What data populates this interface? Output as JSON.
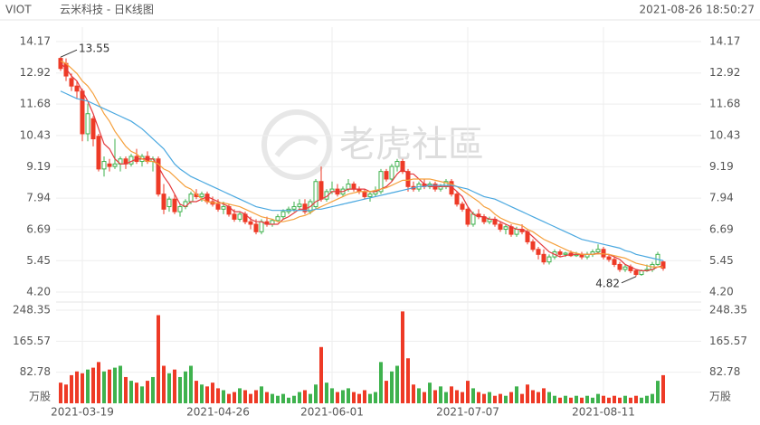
{
  "chart_data": {
    "type": "candlestick",
    "symbol": "VIOT",
    "title": "云米科技 - 日K线图",
    "timestamp": "2021-08-26 18:50:27",
    "watermark": "老虎社區",
    "up_color": "#3fb24e",
    "down_color": "#ee3a26",
    "categories": [
      null,
      null,
      null,
      null,
      "2021-03-19",
      null,
      null,
      null,
      null,
      null,
      null,
      null,
      null,
      null,
      null,
      null,
      null,
      null,
      null,
      null,
      null,
      null,
      null,
      null,
      null,
      null,
      null,
      null,
      null,
      "2021-04-26",
      null,
      null,
      null,
      null,
      null,
      null,
      null,
      null,
      null,
      null,
      null,
      null,
      null,
      null,
      null,
      null,
      null,
      null,
      null,
      null,
      "2021-06-01",
      null,
      null,
      null,
      null,
      null,
      null,
      null,
      null,
      null,
      null,
      null,
      null,
      null,
      null,
      null,
      null,
      null,
      null,
      null,
      null,
      null,
      null,
      null,
      null,
      "2021-07-07",
      null,
      null,
      null,
      null,
      null,
      null,
      null,
      null,
      null,
      null,
      null,
      null,
      null,
      null,
      null,
      null,
      null,
      null,
      null,
      null,
      null,
      null,
      null,
      null,
      "2021-08-11",
      null,
      null,
      null,
      null,
      null,
      null,
      null,
      null,
      null,
      null,
      null
    ],
    "open": [
      13.5,
      13.3,
      12.7,
      12.4,
      12.2,
      10.5,
      11.1,
      10.4,
      9.1,
      9.3,
      9.2,
      9.3,
      9.5,
      9.3,
      9.6,
      9.4,
      9.6,
      9.4,
      9.5,
      8.1,
      7.6,
      7.9,
      7.4,
      7.6,
      7.8,
      8.1,
      8.0,
      8.1,
      7.8,
      7.7,
      7.5,
      7.6,
      7.3,
      7.1,
      7.3,
      7.0,
      6.9,
      6.6,
      7.0,
      6.9,
      7.05,
      7.2,
      7.4,
      7.5,
      7.6,
      7.7,
      7.4,
      7.6,
      8.6,
      7.9,
      8.2,
      8.3,
      8.1,
      8.3,
      8.5,
      8.3,
      8.2,
      8.0,
      8.1,
      8.2,
      9.0,
      8.7,
      9.2,
      9.4,
      9.0,
      8.4,
      8.3,
      8.5,
      8.4,
      8.5,
      8.3,
      8.4,
      8.6,
      8.1,
      7.7,
      7.5,
      6.9,
      7.3,
      7.2,
      7.0,
      7.1,
      6.9,
      6.7,
      6.8,
      6.5,
      6.7,
      6.6,
      6.2,
      5.9,
      5.7,
      5.4,
      5.6,
      5.8,
      5.7,
      5.75,
      5.65,
      5.7,
      5.6,
      5.7,
      5.8,
      5.9,
      5.6,
      5.5,
      5.3,
      5.1,
      5.2,
      5.05,
      4.9,
      5.05,
      5.1,
      5.3,
      5.4
    ],
    "high": [
      13.55,
      13.5,
      12.9,
      12.6,
      12.3,
      11.7,
      11.2,
      10.5,
      9.6,
      9.5,
      10.3,
      9.6,
      9.6,
      9.7,
      9.9,
      9.7,
      9.8,
      9.6,
      9.6,
      8.5,
      8.0,
      8.1,
      7.7,
      7.9,
      8.2,
      8.3,
      8.2,
      8.2,
      8.0,
      7.9,
      7.8,
      7.7,
      7.5,
      7.4,
      7.4,
      7.2,
      7.1,
      7.1,
      7.2,
      7.1,
      7.3,
      7.5,
      7.6,
      7.8,
      7.9,
      7.9,
      7.9,
      8.7,
      9.2,
      8.3,
      8.6,
      8.5,
      8.4,
      8.7,
      8.6,
      8.4,
      8.3,
      8.2,
      8.4,
      9.1,
      9.1,
      9.3,
      9.5,
      9.5,
      9.1,
      8.6,
      8.6,
      8.7,
      8.6,
      8.6,
      8.5,
      8.7,
      8.7,
      8.2,
      7.8,
      7.6,
      7.4,
      7.5,
      7.3,
      7.2,
      7.2,
      7.0,
      6.9,
      6.9,
      6.8,
      6.9,
      6.7,
      6.3,
      6.0,
      5.9,
      5.7,
      5.9,
      5.9,
      5.8,
      5.85,
      5.8,
      5.8,
      5.8,
      5.9,
      6.1,
      6.0,
      5.7,
      5.6,
      5.4,
      5.3,
      5.3,
      5.1,
      5.1,
      5.3,
      5.4,
      5.8,
      5.45
    ],
    "low": [
      13.0,
      12.6,
      12.2,
      11.9,
      10.2,
      10.2,
      10.0,
      9.0,
      8.8,
      9.0,
      9.1,
      9.0,
      9.1,
      9.2,
      9.3,
      9.2,
      9.3,
      9.0,
      8.0,
      7.3,
      7.4,
      7.3,
      7.2,
      7.5,
      7.7,
      7.9,
      7.8,
      7.7,
      7.6,
      7.4,
      7.3,
      7.2,
      7.0,
      7.0,
      6.9,
      6.7,
      6.5,
      6.5,
      6.8,
      6.8,
      7.0,
      7.1,
      7.3,
      7.4,
      7.5,
      7.3,
      7.3,
      7.5,
      7.8,
      7.8,
      8.1,
      8.0,
      8.0,
      8.2,
      8.2,
      8.1,
      7.9,
      7.8,
      8.0,
      8.1,
      8.6,
      8.6,
      9.0,
      8.9,
      8.2,
      8.2,
      8.2,
      8.3,
      8.3,
      8.2,
      8.2,
      8.3,
      8.0,
      7.6,
      7.4,
      6.8,
      6.8,
      7.1,
      6.9,
      6.9,
      6.8,
      6.6,
      6.5,
      6.4,
      6.4,
      6.5,
      6.1,
      5.8,
      5.5,
      5.3,
      5.3,
      5.5,
      5.6,
      5.6,
      5.6,
      5.6,
      5.5,
      5.5,
      5.6,
      5.7,
      5.5,
      5.4,
      5.2,
      5.0,
      5.0,
      4.95,
      4.82,
      4.85,
      5.0,
      5.0,
      5.25,
      5.05
    ],
    "close": [
      13.1,
      12.8,
      12.4,
      12.2,
      10.5,
      11.3,
      10.3,
      9.1,
      9.4,
      9.2,
      9.3,
      9.5,
      9.3,
      9.6,
      9.4,
      9.6,
      9.4,
      9.5,
      8.1,
      7.5,
      7.9,
      7.4,
      7.6,
      7.8,
      8.1,
      8.0,
      8.1,
      7.8,
      7.7,
      7.5,
      7.6,
      7.3,
      7.1,
      7.3,
      7.0,
      6.9,
      6.6,
      7.0,
      6.9,
      7.05,
      7.2,
      7.4,
      7.5,
      7.6,
      7.7,
      7.4,
      7.8,
      8.6,
      7.9,
      8.2,
      8.3,
      8.1,
      8.3,
      8.5,
      8.3,
      8.2,
      8.0,
      8.1,
      8.2,
      9.0,
      8.7,
      9.2,
      9.4,
      9.0,
      8.4,
      8.3,
      8.5,
      8.4,
      8.5,
      8.3,
      8.4,
      8.6,
      8.1,
      7.7,
      7.5,
      6.9,
      7.3,
      7.2,
      7.0,
      7.1,
      6.9,
      6.7,
      6.8,
      6.5,
      6.7,
      6.6,
      6.2,
      5.9,
      5.7,
      5.4,
      5.6,
      5.8,
      5.7,
      5.75,
      5.65,
      5.7,
      5.6,
      5.7,
      5.8,
      5.9,
      5.6,
      5.5,
      5.3,
      5.1,
      5.2,
      5.05,
      4.9,
      5.05,
      5.1,
      5.3,
      5.7,
      5.15
    ],
    "volume": [
      55,
      50,
      75,
      85,
      80,
      90,
      95,
      110,
      85,
      90,
      95,
      100,
      70,
      60,
      55,
      45,
      60,
      70,
      235,
      100,
      80,
      90,
      70,
      85,
      100,
      60,
      50,
      45,
      55,
      40,
      35,
      25,
      30,
      40,
      35,
      25,
      35,
      45,
      30,
      25,
      20,
      25,
      15,
      20,
      30,
      35,
      25,
      50,
      150,
      55,
      40,
      30,
      35,
      40,
      30,
      25,
      35,
      25,
      30,
      110,
      60,
      85,
      100,
      245,
      120,
      50,
      40,
      30,
      55,
      35,
      45,
      30,
      45,
      35,
      30,
      60,
      40,
      30,
      25,
      30,
      20,
      25,
      20,
      30,
      45,
      25,
      50,
      35,
      30,
      40,
      30,
      20,
      15,
      20,
      15,
      20,
      15,
      20,
      15,
      25,
      20,
      15,
      20,
      15,
      20,
      15,
      20,
      15,
      20,
      25,
      60,
      75
    ],
    "ma": [
      {
        "color": "#e4393c",
        "values": [
          13.3,
          13.1,
          12.8,
          12.6,
          12.2,
          11.8,
          11.3,
          10.7,
          10.1,
          9.9,
          9.5,
          9.3,
          9.3,
          9.4,
          9.5,
          9.5,
          9.5,
          9.5,
          9.2,
          8.8,
          8.5,
          8.1,
          7.7,
          7.6,
          7.8,
          7.8,
          7.9,
          8.0,
          7.9,
          7.8,
          7.7,
          7.6,
          7.4,
          7.4,
          7.3,
          7.1,
          7.0,
          7.0,
          6.9,
          6.9,
          6.9,
          7.1,
          7.2,
          7.35,
          7.5,
          7.5,
          7.6,
          7.8,
          7.9,
          8.0,
          8.2,
          8.2,
          8.2,
          8.3,
          8.3,
          8.3,
          8.3,
          8.2,
          8.2,
          8.3,
          8.4,
          8.6,
          8.9,
          9.1,
          8.9,
          8.9,
          8.7,
          8.5,
          8.4,
          8.4,
          8.4,
          8.4,
          8.4,
          8.2,
          8.0,
          7.6,
          7.3,
          7.2,
          7.2,
          7.1,
          7.1,
          7.0,
          6.9,
          6.8,
          6.7,
          6.7,
          6.6,
          6.4,
          6.2,
          6.0,
          5.8,
          5.7,
          5.6,
          5.65,
          5.7,
          5.7,
          5.7,
          5.7,
          5.7,
          5.75,
          5.7,
          5.7,
          5.6,
          5.5,
          5.3,
          5.2,
          5.1,
          5.05,
          5.05,
          5.1,
          5.2,
          5.25
        ]
      },
      {
        "color": "#f5a03c",
        "values": [
          13.4,
          13.3,
          13.1,
          12.9,
          12.6,
          12.4,
          12.1,
          11.7,
          11.3,
          11.0,
          10.6,
          10.3,
          10.0,
          9.8,
          9.7,
          9.5,
          9.4,
          9.4,
          9.3,
          9.1,
          9.0,
          8.8,
          8.6,
          8.4,
          8.3,
          8.1,
          7.9,
          7.8,
          7.75,
          7.75,
          7.75,
          7.7,
          7.65,
          7.6,
          7.5,
          7.4,
          7.3,
          7.2,
          7.15,
          7.1,
          7.0,
          7.0,
          7.05,
          7.1,
          7.2,
          7.25,
          7.35,
          7.5,
          7.6,
          7.7,
          7.8,
          7.9,
          8.0,
          8.1,
          8.15,
          8.2,
          8.2,
          8.2,
          8.25,
          8.3,
          8.35,
          8.45,
          8.55,
          8.65,
          8.65,
          8.7,
          8.7,
          8.7,
          8.7,
          8.65,
          8.6,
          8.55,
          8.5,
          8.4,
          8.25,
          8.1,
          7.95,
          7.8,
          7.6,
          7.5,
          7.3,
          7.15,
          7.05,
          6.95,
          6.9,
          6.85,
          6.7,
          6.6,
          6.45,
          6.3,
          6.2,
          6.1,
          6.0,
          5.9,
          5.8,
          5.75,
          5.7,
          5.7,
          5.7,
          5.72,
          5.72,
          5.7,
          5.65,
          5.6,
          5.55,
          5.45,
          5.35,
          5.3,
          5.25,
          5.2,
          5.2,
          5.2
        ]
      },
      {
        "color": "#4aa8e0",
        "values": [
          12.2,
          12.1,
          12.0,
          11.9,
          11.85,
          11.8,
          11.7,
          11.6,
          11.5,
          11.4,
          11.3,
          11.2,
          11.1,
          11.0,
          10.85,
          10.7,
          10.5,
          10.3,
          10.1,
          9.9,
          9.6,
          9.3,
          9.1,
          8.95,
          8.8,
          8.7,
          8.6,
          8.5,
          8.4,
          8.3,
          8.2,
          8.1,
          8.0,
          7.9,
          7.8,
          7.7,
          7.6,
          7.55,
          7.5,
          7.45,
          7.45,
          7.45,
          7.45,
          7.45,
          7.45,
          7.45,
          7.45,
          7.5,
          7.5,
          7.55,
          7.6,
          7.65,
          7.7,
          7.75,
          7.8,
          7.85,
          7.9,
          7.95,
          8.0,
          8.05,
          8.1,
          8.15,
          8.2,
          8.25,
          8.3,
          8.35,
          8.4,
          8.4,
          8.45,
          8.45,
          8.45,
          8.45,
          8.45,
          8.4,
          8.35,
          8.3,
          8.2,
          8.1,
          8.0,
          7.95,
          7.9,
          7.8,
          7.7,
          7.6,
          7.5,
          7.4,
          7.3,
          7.2,
          7.1,
          7.0,
          6.9,
          6.8,
          6.7,
          6.6,
          6.5,
          6.4,
          6.3,
          6.25,
          6.2,
          6.15,
          6.1,
          6.05,
          6.0,
          5.95,
          5.85,
          5.8,
          5.7,
          5.65,
          5.6,
          5.55,
          5.5,
          5.45
        ]
      }
    ],
    "ylim": [
      4.2,
      14.17
    ],
    "yticks": [
      {
        "value": 4.2,
        "label": "4.20"
      },
      5.45,
      6.69,
      7.94,
      9.19,
      10.43,
      11.68,
      12.92,
      14.17
    ],
    "volume_unit": "万股",
    "vol_ylim": [
      0,
      248.35
    ],
    "vol_yticks": [
      82.78,
      165.57,
      248.35
    ],
    "max_index": 0,
    "min_index": 106,
    "grid": true
  }
}
